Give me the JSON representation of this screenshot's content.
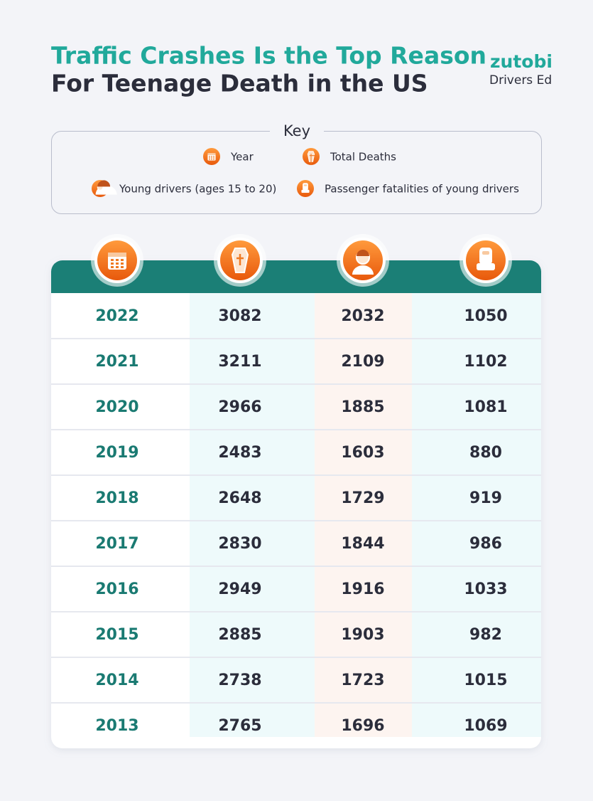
{
  "header": {
    "title_line1": "Traffic Crashes Is the Top Reason",
    "title_line2": "For Teenage Death in the US"
  },
  "logo": {
    "brand": "zutobi",
    "product": "Drivers Ed"
  },
  "key": {
    "title": "Key",
    "items": [
      "Year",
      "Total Deaths",
      "Young drivers (ages 15 to 20)",
      "Passenger fatalities of young drivers"
    ]
  },
  "table": {
    "rows": [
      [
        "2022",
        "3082",
        "2032",
        "1050"
      ],
      [
        "2021",
        "3211",
        "2109",
        "1102"
      ],
      [
        "2020",
        "2966",
        "1885",
        "1081"
      ],
      [
        "2019",
        "2483",
        "1603",
        "880"
      ],
      [
        "2018",
        "2648",
        "1729",
        "919"
      ],
      [
        "2017",
        "2830",
        "1844",
        "986"
      ],
      [
        "2016",
        "2949",
        "1916",
        "1033"
      ],
      [
        "2015",
        "2885",
        "1903",
        "982"
      ],
      [
        "2014",
        "2738",
        "1723",
        "1015"
      ],
      [
        "2013",
        "2765",
        "1696",
        "1069"
      ]
    ]
  }
}
